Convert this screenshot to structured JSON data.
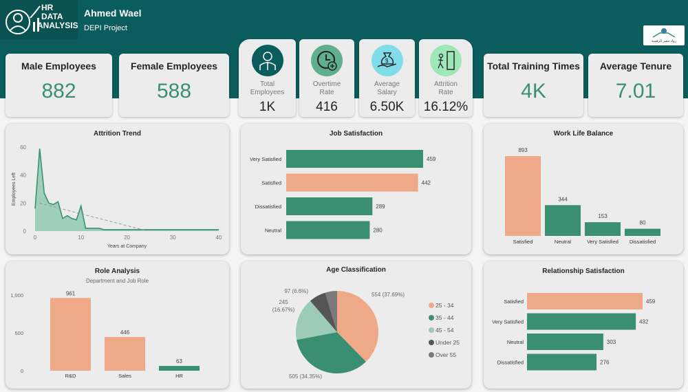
{
  "header": {
    "logo_lines": [
      "HR",
      "DATA",
      "ANALYSIS"
    ],
    "title": "Ahmed Wael",
    "subtitle": "DEPI Project",
    "brand_logo_text": "رواد مصر الرقمية"
  },
  "kpis": {
    "male": {
      "label": "Male Employees",
      "value": "882"
    },
    "female": {
      "label": "Female Employees",
      "value": "588"
    },
    "training": {
      "label": "Total Training Times",
      "value": "4K"
    },
    "tenure": {
      "label": "Average Tenure",
      "value": "7.01"
    }
  },
  "mini_kpis": [
    {
      "label1": "Total",
      "label2": "Employees",
      "value": "1K",
      "icon": "employee-icon",
      "color": "#0b5c5c"
    },
    {
      "label1": "Overtime",
      "label2": "Rate",
      "value": "416",
      "icon": "clock-plus-icon",
      "color": "#5fae8e"
    },
    {
      "label1": "Average",
      "label2": "Salary",
      "value": "6.50K",
      "icon": "money-bag-icon",
      "color": "#7fdce8"
    },
    {
      "label1": "Attrition",
      "label2": "Rate",
      "value": "16.12%",
      "icon": "exit-door-icon",
      "color": "#9ee8b8"
    }
  ],
  "colors": {
    "green": "#3a8f73",
    "orange": "#f0a988",
    "light_green": "#9ccbb8",
    "dark_gray": "#555555",
    "gray": "#7a7a7a"
  },
  "chart_data": [
    {
      "id": "attrition",
      "type": "area",
      "title": "Attrition Trend",
      "xlabel": "Years at Company",
      "ylabel": "Employees Left",
      "xlim": [
        0,
        40
      ],
      "ylim": [
        0,
        60
      ],
      "xticks": [
        "0",
        "10",
        "20",
        "30",
        "40"
      ],
      "yticks": [
        "0",
        "20",
        "40",
        "60"
      ],
      "trendline": true,
      "x": [
        0,
        1,
        2,
        3,
        4,
        5,
        6,
        7,
        8,
        9,
        10,
        11,
        12,
        13,
        14,
        15,
        16,
        17,
        18,
        19,
        20,
        21,
        22,
        23,
        24,
        25,
        26,
        27,
        28,
        29,
        30,
        31,
        32,
        33,
        34,
        35,
        36,
        37,
        38,
        39,
        40
      ],
      "y": [
        16,
        59,
        27,
        20,
        19,
        21,
        9,
        11,
        9,
        8,
        18,
        2,
        2,
        2,
        2,
        1,
        1,
        1,
        1,
        1,
        1,
        1,
        1,
        1,
        1,
        1,
        1,
        1,
        1,
        1,
        1,
        1,
        1,
        1,
        1,
        1,
        1,
        1,
        1,
        1,
        1
      ]
    },
    {
      "id": "job",
      "type": "bar",
      "orientation": "horizontal",
      "title": "Job Satisfaction",
      "categories": [
        "Very Satisfied",
        "Satisfied",
        "Dissatisfied",
        "Neutral"
      ],
      "values": [
        459,
        442,
        289,
        280
      ],
      "highlight": "Satisfied"
    },
    {
      "id": "wlb",
      "type": "bar",
      "title": "Work Life Balance",
      "categories": [
        "Satisfied",
        "Neutral",
        "Very Satisfied",
        "Dissatisfied"
      ],
      "values": [
        893,
        344,
        153,
        80
      ],
      "highlight": "Satisfied"
    },
    {
      "id": "role",
      "type": "bar",
      "title": "Role Analysis",
      "subtitle": "Department and Job Role",
      "categories": [
        "R&D",
        "Sales",
        "HR"
      ],
      "values": [
        961,
        446,
        63
      ],
      "ylim": [
        0,
        1000
      ],
      "yticks": [
        "0",
        "500",
        "1,000"
      ],
      "colors": [
        "#f0a988",
        "#f0a988",
        "#3a8f73"
      ]
    },
    {
      "id": "age",
      "type": "pie",
      "title": "Age Classification",
      "categories": [
        "25 - 34",
        "35 - 44",
        "45 - 54",
        "Under 25",
        "Over 55"
      ],
      "values": [
        554,
        505,
        245,
        97,
        69
      ],
      "labels": [
        "554 (37.69%)",
        "505 (34.35%)",
        "245 (16.67%)",
        "97 (6.6%)",
        ""
      ],
      "colors": [
        "#f0a988",
        "#3a8f73",
        "#9ccbb8",
        "#555555",
        "#7a7a7a"
      ],
      "legend": "right"
    },
    {
      "id": "rel",
      "type": "bar",
      "orientation": "horizontal",
      "title": "Relationship Satisfaction",
      "categories": [
        "Satisfied",
        "Very Satisfied",
        "Neutral",
        "Dissatisfied"
      ],
      "values": [
        459,
        432,
        303,
        276
      ],
      "highlight": "Satisfied"
    }
  ]
}
